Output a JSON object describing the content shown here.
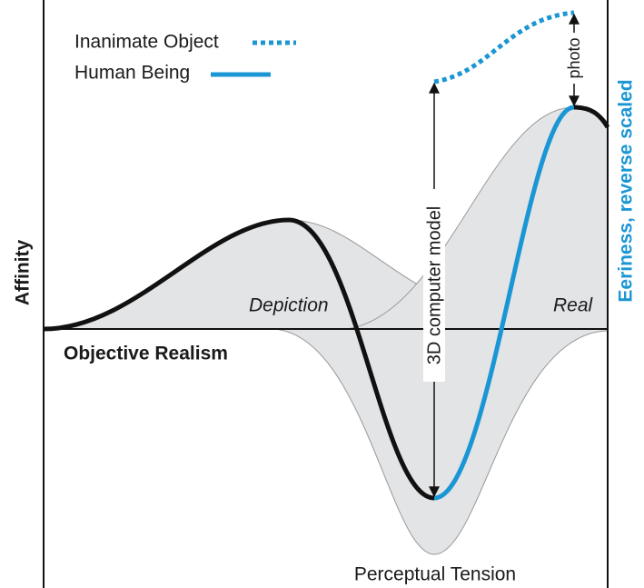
{
  "legend": {
    "inanimate": "Inanimate Object",
    "human": "Human Being"
  },
  "axes": {
    "y_left": "Affinity",
    "y_right": "Eeriness, reverse scaled",
    "x": "Objective Realism"
  },
  "regions": {
    "depiction": "Depiction",
    "real": "Real",
    "tension": "Perceptual Tension"
  },
  "annotations": {
    "model": "3D computer model",
    "photo": "photo"
  }
}
